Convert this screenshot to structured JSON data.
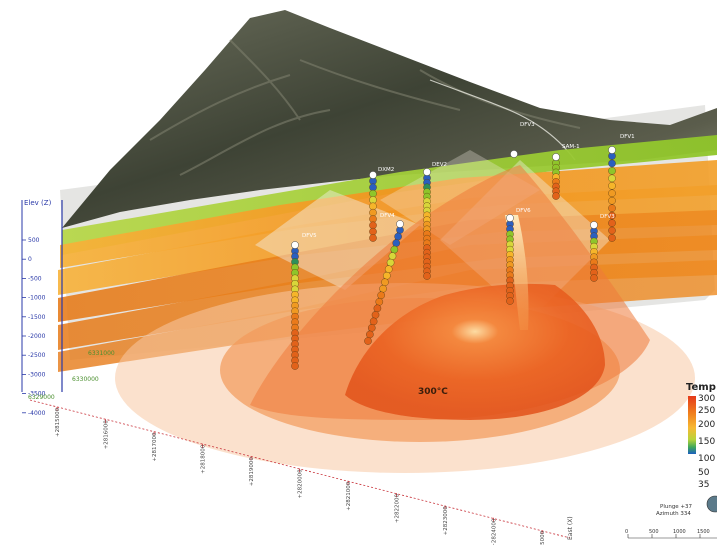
{
  "colors": {
    "terrain_dark": "#3f4437",
    "terrain_light": "#8a8c7c",
    "ground_green": "#9fce2a",
    "layer_orange": "#f39a1f",
    "layer_deep": "#e8700f",
    "heat_core": "#e9571a",
    "heat_mid": "#f08a4a",
    "heat_outer": "#f6cfb2",
    "axis_blue": "#2a39a8",
    "axis_red": "#c8323a",
    "grid_green": "#4a8f2e"
  },
  "elevation_axis": {
    "title": "Elev (Z)",
    "ticks": [
      "500",
      "0",
      "-500",
      "-1000",
      "-1500",
      "-2000",
      "-2500",
      "-3000",
      "-3500",
      "-4000"
    ]
  },
  "northing_labels": [
    "6331000",
    "6330000",
    "6329000"
  ],
  "easting_axis": {
    "title": "East (X)",
    "ticks": [
      "2815000",
      "2816000",
      "2817000",
      "2818000",
      "2819000",
      "2820000",
      "2821000",
      "2822000",
      "2823000",
      "2824000",
      "2825000"
    ]
  },
  "wells": [
    {
      "id": "w1",
      "label": "DFV1"
    },
    {
      "id": "w2",
      "label": "DFV3"
    },
    {
      "id": "w3",
      "label": "DEV2"
    },
    {
      "id": "w4",
      "label": "DXM2"
    },
    {
      "id": "w5",
      "label": "DFV4"
    },
    {
      "id": "w6",
      "label": "DFV5"
    },
    {
      "id": "w7",
      "label": "DFV6"
    },
    {
      "id": "w8",
      "label": "SAM-1"
    },
    {
      "id": "w9",
      "label": "DFV3"
    }
  ],
  "center_label": "300°C",
  "legend": {
    "title": "Temp",
    "values": [
      "300",
      "250",
      "200",
      "150",
      "100",
      "50",
      "35"
    ]
  },
  "compass": {
    "plunge": "Plunge +37",
    "azimuth": "Azimuth 334"
  },
  "scale_bar": {
    "ticks": [
      "0",
      "500",
      "1000",
      "1500"
    ]
  }
}
